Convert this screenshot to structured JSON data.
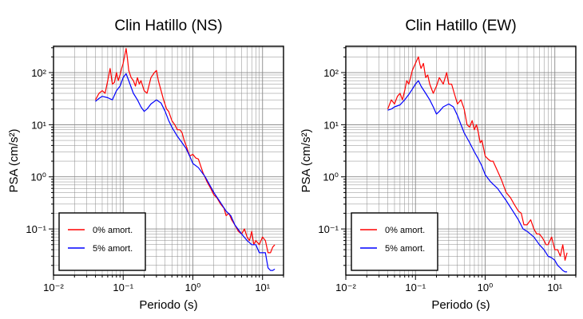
{
  "chart_data": [
    {
      "type": "line",
      "title": "Clin Hatillo (NS)",
      "xlabel": "Periodo (s)",
      "ylabel": "PSA (cm/s²)",
      "xscale": "log",
      "yscale": "log",
      "xlim": [
        0.01,
        20
      ],
      "ylim": [
        0.013,
        320
      ],
      "xticks": [
        "10⁻²",
        "10⁻¹",
        "10⁰",
        "10¹"
      ],
      "yticks": [
        "10⁻¹",
        "10⁰",
        "10¹",
        "10²"
      ],
      "grid": true,
      "legend": "bottom-left",
      "series": [
        {
          "name": "0% amort.",
          "color": "#ff0000",
          "x": [
            0.04,
            0.045,
            0.05,
            0.055,
            0.06,
            0.065,
            0.07,
            0.075,
            0.08,
            0.085,
            0.09,
            0.095,
            0.1,
            0.11,
            0.115,
            0.12,
            0.13,
            0.14,
            0.15,
            0.16,
            0.17,
            0.18,
            0.2,
            0.22,
            0.25,
            0.28,
            0.3,
            0.32,
            0.35,
            0.38,
            0.42,
            0.45,
            0.5,
            0.55,
            0.6,
            0.65,
            0.7,
            0.75,
            0.8,
            0.9,
            1.0,
            1.1,
            1.2,
            1.3,
            1.4,
            1.6,
            1.8,
            2.0,
            2.2,
            2.5,
            2.8,
            3.0,
            3.3,
            3.6,
            4.0,
            4.5,
            5.0,
            5.5,
            6.0,
            6.5,
            7.0,
            7.5,
            8.0,
            9.0,
            10.0,
            11.0,
            12.0,
            13.0,
            14.0,
            15.0
          ],
          "y": [
            30,
            40,
            45,
            40,
            70,
            120,
            60,
            65,
            100,
            70,
            90,
            120,
            150,
            290,
            190,
            110,
            80,
            70,
            55,
            80,
            60,
            70,
            45,
            40,
            80,
            100,
            110,
            70,
            45,
            30,
            20,
            18,
            12,
            10,
            8,
            8,
            7,
            5,
            4,
            2.5,
            2.7,
            2.3,
            2.2,
            1.6,
            1.2,
            0.8,
            0.6,
            0.45,
            0.4,
            0.3,
            0.25,
            0.18,
            0.2,
            0.15,
            0.12,
            0.09,
            0.08,
            0.1,
            0.07,
            0.06,
            0.09,
            0.05,
            0.06,
            0.05,
            0.07,
            0.06,
            0.035,
            0.035,
            0.045,
            0.05
          ]
        },
        {
          "name": "5% amort.",
          "color": "#0000ff",
          "x": [
            0.04,
            0.045,
            0.05,
            0.06,
            0.07,
            0.08,
            0.09,
            0.1,
            0.11,
            0.12,
            0.14,
            0.16,
            0.18,
            0.2,
            0.22,
            0.25,
            0.3,
            0.35,
            0.4,
            0.45,
            0.5,
            0.6,
            0.7,
            0.8,
            0.9,
            1.0,
            1.2,
            1.5,
            2.0,
            2.5,
            3.0,
            3.5,
            4.0,
            5.0,
            6.0,
            7.0,
            8.0,
            9.0,
            10.0,
            11.0,
            12.0,
            13.0,
            14.0,
            15.0
          ],
          "y": [
            28,
            32,
            35,
            33,
            30,
            45,
            55,
            80,
            95,
            70,
            40,
            30,
            22,
            18,
            20,
            25,
            30,
            26,
            18,
            12,
            9,
            6,
            4.5,
            3.5,
            2.5,
            1.8,
            1.5,
            1.0,
            0.5,
            0.32,
            0.22,
            0.18,
            0.12,
            0.08,
            0.06,
            0.05,
            0.05,
            0.035,
            0.035,
            0.035,
            0.018,
            0.016,
            0.016,
            0.017
          ]
        }
      ]
    },
    {
      "type": "line",
      "title": "Clin Hatillo (EW)",
      "xlabel": "Periodo (s)",
      "ylabel": "PSA (cm/s²)",
      "xscale": "log",
      "yscale": "log",
      "xlim": [
        0.01,
        20
      ],
      "ylim": [
        0.013,
        320
      ],
      "xticks": [
        "10⁻²",
        "10⁻¹",
        "10⁰",
        "10¹"
      ],
      "yticks": [
        "10⁻¹",
        "10⁰",
        "10¹",
        "10²"
      ],
      "grid": true,
      "legend": "bottom-left",
      "series": [
        {
          "name": "0% amort.",
          "color": "#ff0000",
          "x": [
            0.04,
            0.045,
            0.05,
            0.055,
            0.06,
            0.065,
            0.07,
            0.075,
            0.08,
            0.085,
            0.09,
            0.095,
            0.1,
            0.11,
            0.115,
            0.12,
            0.13,
            0.14,
            0.15,
            0.16,
            0.18,
            0.2,
            0.22,
            0.25,
            0.28,
            0.3,
            0.33,
            0.36,
            0.4,
            0.45,
            0.5,
            0.55,
            0.6,
            0.65,
            0.7,
            0.75,
            0.8,
            0.85,
            0.9,
            1.0,
            1.1,
            1.2,
            1.3,
            1.5,
            1.7,
            2.0,
            2.3,
            2.6,
            3.0,
            3.3,
            3.6,
            4.0,
            4.5,
            5.0,
            5.5,
            6.0,
            6.5,
            7.0,
            7.5,
            8.0,
            9.0,
            10.0,
            11.0,
            12.0,
            13.0,
            14.0,
            15.0
          ],
          "y": [
            20,
            30,
            25,
            35,
            40,
            30,
            45,
            70,
            60,
            80,
            110,
            130,
            150,
            200,
            150,
            120,
            150,
            80,
            90,
            60,
            40,
            55,
            80,
            60,
            100,
            60,
            60,
            40,
            25,
            30,
            20,
            10,
            9,
            12,
            8,
            10,
            7,
            4.5,
            5,
            2.5,
            2.2,
            2.0,
            2.0,
            1.3,
            0.9,
            0.5,
            0.4,
            0.3,
            0.22,
            0.2,
            0.12,
            0.12,
            0.15,
            0.1,
            0.08,
            0.08,
            0.07,
            0.06,
            0.05,
            0.05,
            0.07,
            0.04,
            0.04,
            0.03,
            0.05,
            0.025,
            0.035
          ]
        },
        {
          "name": "5% amort.",
          "color": "#0000ff",
          "x": [
            0.04,
            0.045,
            0.05,
            0.06,
            0.07,
            0.08,
            0.09,
            0.1,
            0.11,
            0.12,
            0.14,
            0.16,
            0.18,
            0.2,
            0.22,
            0.25,
            0.3,
            0.35,
            0.4,
            0.45,
            0.5,
            0.6,
            0.7,
            0.8,
            0.9,
            1.0,
            1.2,
            1.5,
            2.0,
            2.5,
            3.0,
            3.5,
            4.0,
            5.0,
            6.0,
            7.0,
            8.0,
            9.0,
            10.0,
            11.0,
            12.0,
            13.0,
            14.0,
            15.0
          ],
          "y": [
            19,
            20,
            22,
            24,
            30,
            38,
            48,
            60,
            70,
            55,
            40,
            30,
            22,
            16,
            18,
            22,
            25,
            22,
            15,
            10,
            7,
            4.5,
            3.0,
            2.2,
            1.6,
            1.1,
            0.8,
            0.6,
            0.35,
            0.22,
            0.15,
            0.1,
            0.09,
            0.07,
            0.05,
            0.04,
            0.03,
            0.028,
            0.025,
            0.02,
            0.018,
            0.016,
            0.015,
            0.015
          ]
        }
      ]
    }
  ]
}
